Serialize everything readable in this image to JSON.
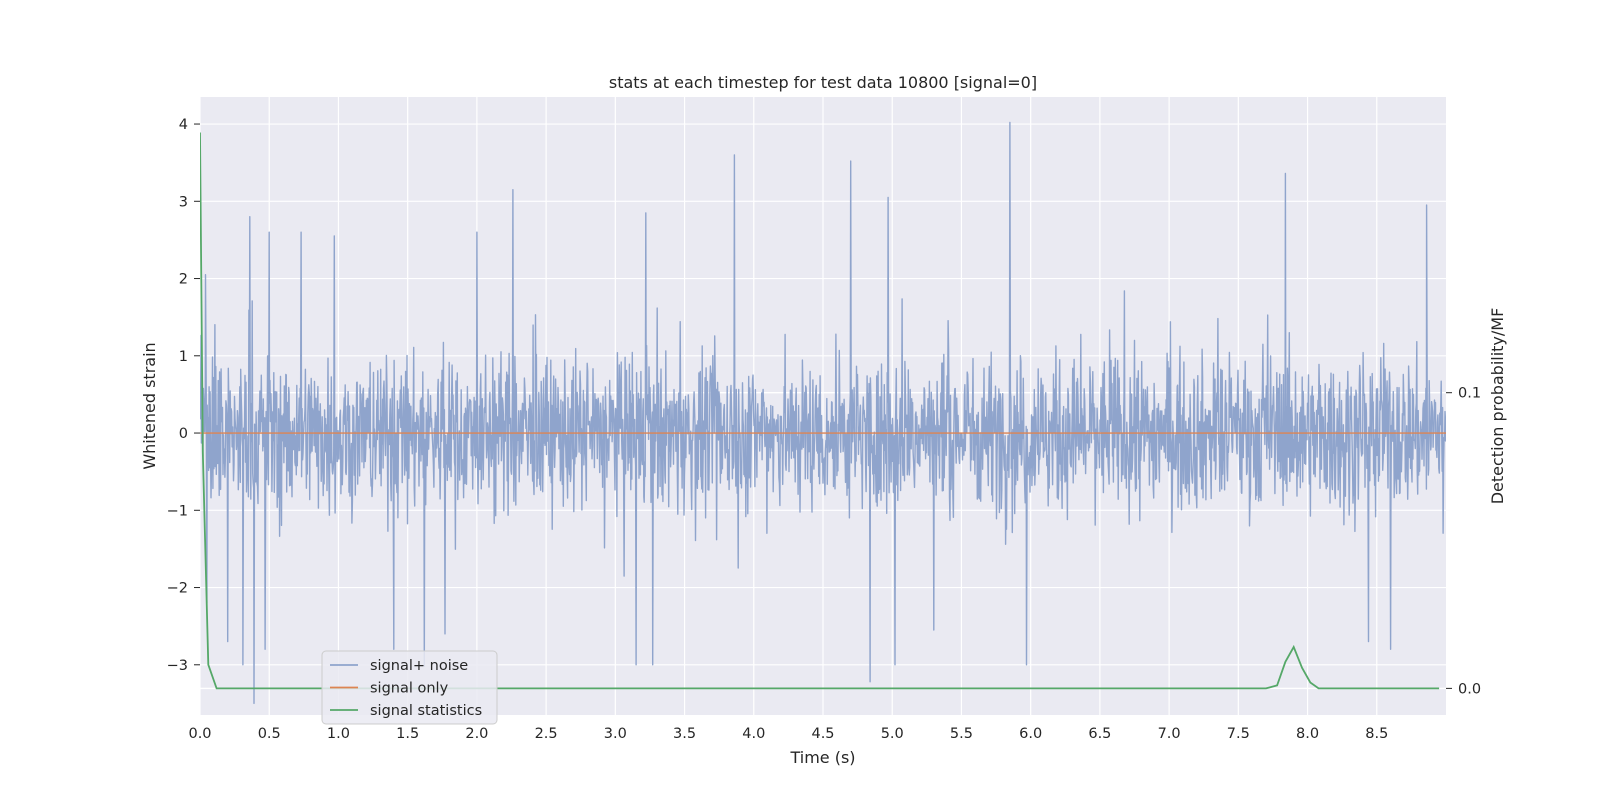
{
  "chart_data": {
    "type": "line",
    "title": "stats at each timestep for test data 10800 [signal=0]",
    "xlabel": "Time (s)",
    "ylabel": "Whitened strain",
    "y2label": "Detection probability/MF",
    "xlim": [
      0.0,
      9.0
    ],
    "ylim": [
      -3.65,
      4.35
    ],
    "y2lim": [
      -0.009,
      0.2
    ],
    "x_ticks": [
      "0.0",
      "0.5",
      "1.0",
      "1.5",
      "2.0",
      "2.5",
      "3.0",
      "3.5",
      "4.0",
      "4.5",
      "5.0",
      "5.5",
      "6.0",
      "6.5",
      "7.0",
      "7.5",
      "8.0",
      "8.5"
    ],
    "y_ticks": [
      "4",
      "3",
      "2",
      "1",
      "0",
      "−1",
      "−2",
      "−3"
    ],
    "y2_ticks": [
      "0.1",
      "0.0"
    ],
    "grid": true,
    "legend_position": "lower-left",
    "colors": {
      "noise": "#8fa4cc",
      "signal_only": "#dd8452",
      "statistics": "#55a868",
      "plot_bg": "#eaeaf2",
      "grid": "#ffffff"
    },
    "series": [
      {
        "name": "signal+ noise",
        "axis": "left",
        "description_of_shape": "dense noise between about -2.2 and +2.0 with spikes",
        "peaks": [
          {
            "x": 0.04,
            "y": 2.05
          },
          {
            "x": 0.36,
            "y": 2.8
          },
          {
            "x": 0.5,
            "y": 2.6
          },
          {
            "x": 0.73,
            "y": 2.6
          },
          {
            "x": 0.97,
            "y": 2.55
          },
          {
            "x": 2.0,
            "y": 2.6
          },
          {
            "x": 2.26,
            "y": 3.15
          },
          {
            "x": 3.22,
            "y": 2.85
          },
          {
            "x": 3.86,
            "y": 3.6
          },
          {
            "x": 4.7,
            "y": 3.52
          },
          {
            "x": 4.97,
            "y": 3.05
          },
          {
            "x": 5.85,
            "y": 4.02
          },
          {
            "x": 7.84,
            "y": 3.36
          },
          {
            "x": 8.86,
            "y": 2.95
          }
        ],
        "troughs": [
          {
            "x": 0.05,
            "y": -2.2
          },
          {
            "x": 0.2,
            "y": -2.7
          },
          {
            "x": 0.31,
            "y": -3.0
          },
          {
            "x": 0.39,
            "y": -3.5
          },
          {
            "x": 0.47,
            "y": -2.8
          },
          {
            "x": 1.4,
            "y": -2.8
          },
          {
            "x": 1.62,
            "y": -3.02
          },
          {
            "x": 1.77,
            "y": -2.6
          },
          {
            "x": 3.15,
            "y": -3.0
          },
          {
            "x": 3.27,
            "y": -3.0
          },
          {
            "x": 4.84,
            "y": -3.22
          },
          {
            "x": 5.02,
            "y": -3.0
          },
          {
            "x": 5.3,
            "y": -2.55
          },
          {
            "x": 5.97,
            "y": -3.0
          },
          {
            "x": 8.44,
            "y": -2.7
          },
          {
            "x": 8.6,
            "y": -2.8
          }
        ]
      },
      {
        "name": "signal only",
        "axis": "left",
        "x": [
          0.0,
          9.0
        ],
        "y": [
          0.0,
          0.0
        ]
      },
      {
        "name": "signal statistics",
        "axis": "right",
        "x": [
          0.0,
          0.02,
          0.06,
          0.12,
          0.2,
          1.0,
          2.0,
          3.0,
          4.0,
          5.0,
          6.0,
          7.0,
          7.7,
          7.78,
          7.84,
          7.9,
          7.96,
          8.02,
          8.08,
          8.2,
          8.5,
          8.95
        ],
        "y": [
          0.188,
          0.08,
          0.008,
          0.0,
          0.0,
          0.0,
          0.0,
          0.0,
          0.0,
          0.0,
          0.0,
          0.0,
          0.0,
          0.001,
          0.009,
          0.014,
          0.007,
          0.002,
          0.0,
          0.0,
          0.0,
          0.0
        ]
      }
    ],
    "legend": [
      "signal+ noise",
      "signal only",
      "signal statistics"
    ]
  }
}
